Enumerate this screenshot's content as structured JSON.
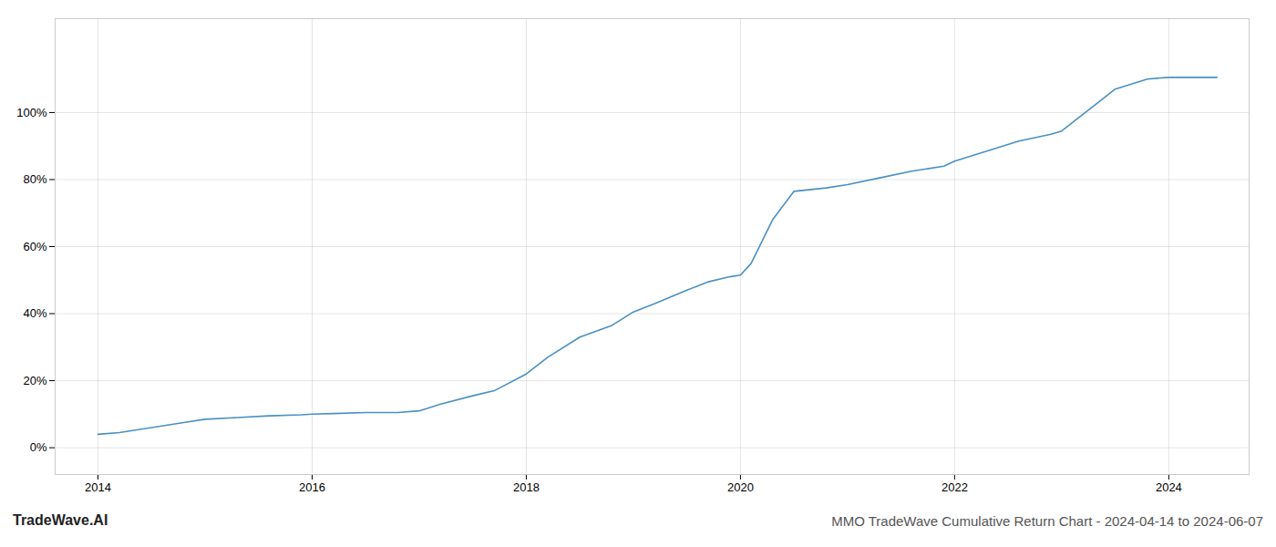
{
  "chart_data": {
    "type": "line",
    "title": "MMO TradeWave Cumulative Return Chart - 2024-04-14 to 2024-06-07",
    "annotations": [
      "TradeWave.AI"
    ],
    "x": [
      2014.0,
      2014.2,
      2014.5,
      2014.8,
      2015.0,
      2015.3,
      2015.6,
      2015.9,
      2016.0,
      2016.2,
      2016.5,
      2016.8,
      2017.0,
      2017.2,
      2017.5,
      2017.7,
      2018.0,
      2018.2,
      2018.5,
      2018.8,
      2019.0,
      2019.2,
      2019.5,
      2019.7,
      2019.9,
      2020.0,
      2020.1,
      2020.3,
      2020.5,
      2020.8,
      2021.0,
      2021.3,
      2021.6,
      2021.9,
      2022.0,
      2022.3,
      2022.6,
      2022.9,
      2023.0,
      2023.1,
      2023.3,
      2023.5,
      2023.8,
      2024.0,
      2024.2,
      2024.45
    ],
    "values": [
      4.0,
      4.5,
      6.0,
      7.5,
      8.5,
      9.0,
      9.5,
      9.8,
      10.0,
      10.2,
      10.5,
      10.5,
      11.0,
      13.0,
      15.5,
      17.0,
      22.0,
      27.0,
      33.0,
      36.5,
      40.5,
      43.0,
      47.0,
      49.5,
      51.0,
      51.5,
      55.0,
      68.0,
      76.5,
      77.5,
      78.5,
      80.5,
      82.5,
      84.0,
      85.5,
      88.5,
      91.5,
      93.5,
      94.5,
      97.0,
      102.0,
      107.0,
      110.0,
      110.5,
      110.5,
      110.5
    ],
    "color": "#4a90c4",
    "xlim": [
      2013.6,
      2024.75
    ],
    "xticks": [
      2014,
      2016,
      2018,
      2020,
      2022,
      2024
    ],
    "ylim": [
      -8,
      128
    ],
    "yticks": [
      {
        "value": 0,
        "label": "0%"
      },
      {
        "value": 20,
        "label": "20%"
      },
      {
        "value": 40,
        "label": "40%"
      },
      {
        "value": 60,
        "label": "60%"
      },
      {
        "value": 80,
        "label": "80%"
      },
      {
        "value": 100,
        "label": "100%"
      }
    ],
    "grid": true
  }
}
